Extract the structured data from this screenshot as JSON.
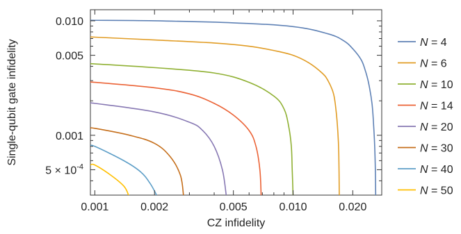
{
  "chart_data": {
    "type": "line",
    "xlabel": "CZ infidelity",
    "ylabel": "Single-qubit gate infidelity",
    "x_scale": "log",
    "y_scale": "log",
    "xlim": [
      0.00095,
      0.028
    ],
    "ylim": [
      0.0003,
      0.0125
    ],
    "x_ticks": [
      {
        "value": 0.001,
        "label": "0.001"
      },
      {
        "value": 0.002,
        "label": "0.002"
      },
      {
        "value": 0.005,
        "label": "0.005"
      },
      {
        "value": 0.01,
        "label": "0.010"
      },
      {
        "value": 0.02,
        "label": "0.020"
      }
    ],
    "y_ticks": [
      {
        "value": 0.0005,
        "label": "5 × 10",
        "sup": "-4"
      },
      {
        "value": 0.001,
        "label": "0.001"
      },
      {
        "value": 0.005,
        "label": "0.005"
      },
      {
        "value": 0.01,
        "label": "0.010"
      }
    ],
    "legend_position": "right",
    "series": [
      {
        "name": "N = 4",
        "var": "N",
        "rest": " = 4",
        "color": "#5E81B5",
        "points": [
          [
            0.00095,
            0.0101
          ],
          [
            0.001,
            0.0101
          ],
          [
            0.002,
            0.01
          ],
          [
            0.005,
            0.0096
          ],
          [
            0.01,
            0.0089
          ],
          [
            0.015,
            0.0077
          ],
          [
            0.018,
            0.0067
          ],
          [
            0.02,
            0.0057
          ],
          [
            0.022,
            0.0046
          ],
          [
            0.023,
            0.0038
          ],
          [
            0.024,
            0.0029
          ],
          [
            0.025,
            0.0019
          ],
          [
            0.0255,
            0.0012
          ],
          [
            0.0258,
            0.0008
          ],
          [
            0.026,
            0.0005
          ],
          [
            0.0261,
            0.0003
          ]
        ]
      },
      {
        "name": "N = 6",
        "var": "N",
        "rest": " = 6",
        "color": "#E19C24",
        "points": [
          [
            0.00095,
            0.0072
          ],
          [
            0.001,
            0.0072
          ],
          [
            0.002,
            0.0068
          ],
          [
            0.004,
            0.0064
          ],
          [
            0.006,
            0.006
          ],
          [
            0.008,
            0.0055
          ],
          [
            0.01,
            0.005
          ],
          [
            0.012,
            0.0043
          ],
          [
            0.014,
            0.0035
          ],
          [
            0.015,
            0.003
          ],
          [
            0.016,
            0.0023
          ],
          [
            0.0165,
            0.0016
          ],
          [
            0.0168,
            0.0011
          ],
          [
            0.017,
            0.0007
          ],
          [
            0.0171,
            0.0003
          ]
        ]
      },
      {
        "name": "N = 10",
        "var": "N",
        "rest": " = 10",
        "color": "#8FB032",
        "points": [
          [
            0.00095,
            0.0042
          ],
          [
            0.001,
            0.0042
          ],
          [
            0.002,
            0.0039
          ],
          [
            0.004,
            0.0035
          ],
          [
            0.006,
            0.0029
          ],
          [
            0.008,
            0.0022
          ],
          [
            0.009,
            0.0017
          ],
          [
            0.0095,
            0.0012
          ],
          [
            0.0098,
            0.0008
          ],
          [
            0.0099,
            0.0005
          ],
          [
            0.01,
            0.0003
          ]
        ]
      },
      {
        "name": "N = 14",
        "var": "N",
        "rest": " = 14",
        "color": "#EB6235",
        "points": [
          [
            0.00095,
            0.0029
          ],
          [
            0.001,
            0.0029
          ],
          [
            0.002,
            0.0026
          ],
          [
            0.003,
            0.0023
          ],
          [
            0.004,
            0.0019
          ],
          [
            0.005,
            0.0015
          ],
          [
            0.006,
            0.0011
          ],
          [
            0.0065,
            0.0008
          ],
          [
            0.0068,
            0.0005
          ],
          [
            0.0069,
            0.0003
          ]
        ]
      },
      {
        "name": "N = 20",
        "var": "N",
        "rest": " = 20",
        "color": "#8778B3",
        "points": [
          [
            0.00095,
            0.0019
          ],
          [
            0.001,
            0.0019
          ],
          [
            0.002,
            0.0016
          ],
          [
            0.003,
            0.0013
          ],
          [
            0.0035,
            0.0011
          ],
          [
            0.004,
            0.0008
          ],
          [
            0.0044,
            0.0005
          ],
          [
            0.0046,
            0.0003
          ]
        ]
      },
      {
        "name": "N = 30",
        "var": "N",
        "rest": " = 30",
        "color": "#C56E1A",
        "points": [
          [
            0.00095,
            0.00115
          ],
          [
            0.001,
            0.00115
          ],
          [
            0.0015,
            0.001
          ],
          [
            0.002,
            0.00085
          ],
          [
            0.0024,
            0.00065
          ],
          [
            0.0027,
            0.00045
          ],
          [
            0.0028,
            0.0003
          ]
        ]
      },
      {
        "name": "N = 40",
        "var": "N",
        "rest": " = 40",
        "color": "#5D9EC7",
        "points": [
          [
            0.00095,
            0.0008
          ],
          [
            0.001,
            0.0008
          ],
          [
            0.0014,
            0.0006
          ],
          [
            0.0017,
            0.00048
          ],
          [
            0.0019,
            0.00038
          ],
          [
            0.00205,
            0.0003
          ]
        ]
      },
      {
        "name": "N = 50",
        "var": "N",
        "rest": " = 50",
        "color": "#FFBF00",
        "points": [
          [
            0.00095,
            0.00055
          ],
          [
            0.001,
            0.00055
          ],
          [
            0.0012,
            0.00045
          ],
          [
            0.0014,
            0.00036
          ],
          [
            0.00148,
            0.0003
          ]
        ]
      }
    ]
  }
}
